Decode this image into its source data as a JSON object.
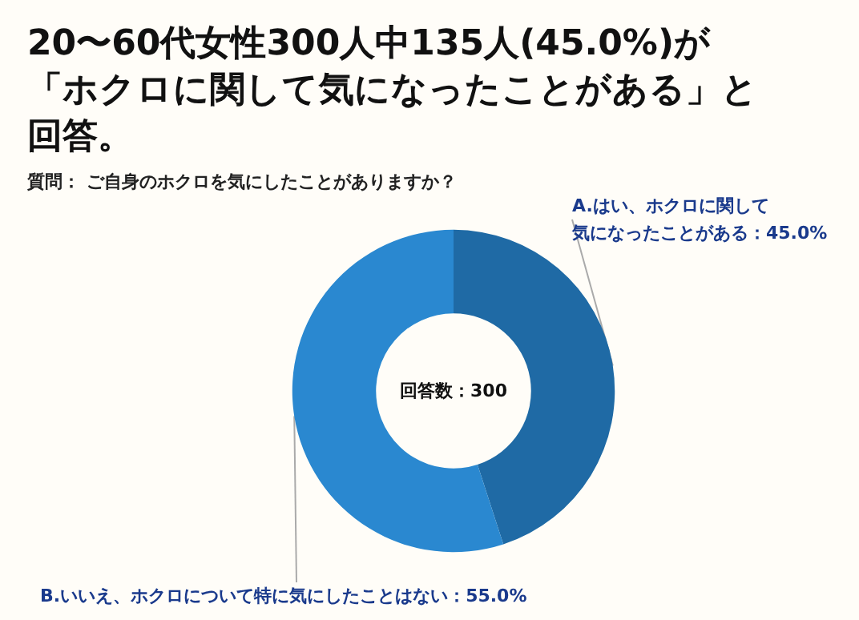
{
  "chart_data": {
    "type": "donut",
    "title": "20〜60代女性300人中135人(45.0%)が「ホクロに関して気になったことがある」と回答。",
    "subtitle": "質問： ご自身のホクロを気にしたことがありますか？",
    "categories": [
      "A.はい、ホクロに関して気になったことがある",
      "B.いいえ、ホクロについて特に気にしたことはない"
    ],
    "values": [
      45.0,
      55.0
    ],
    "value_labels": [
      "45.0%",
      "55.0%"
    ],
    "colors": [
      "#1f6aa5",
      "#2a88d0"
    ],
    "annotations": [
      "回答数：300"
    ],
    "legend": false
  }
}
